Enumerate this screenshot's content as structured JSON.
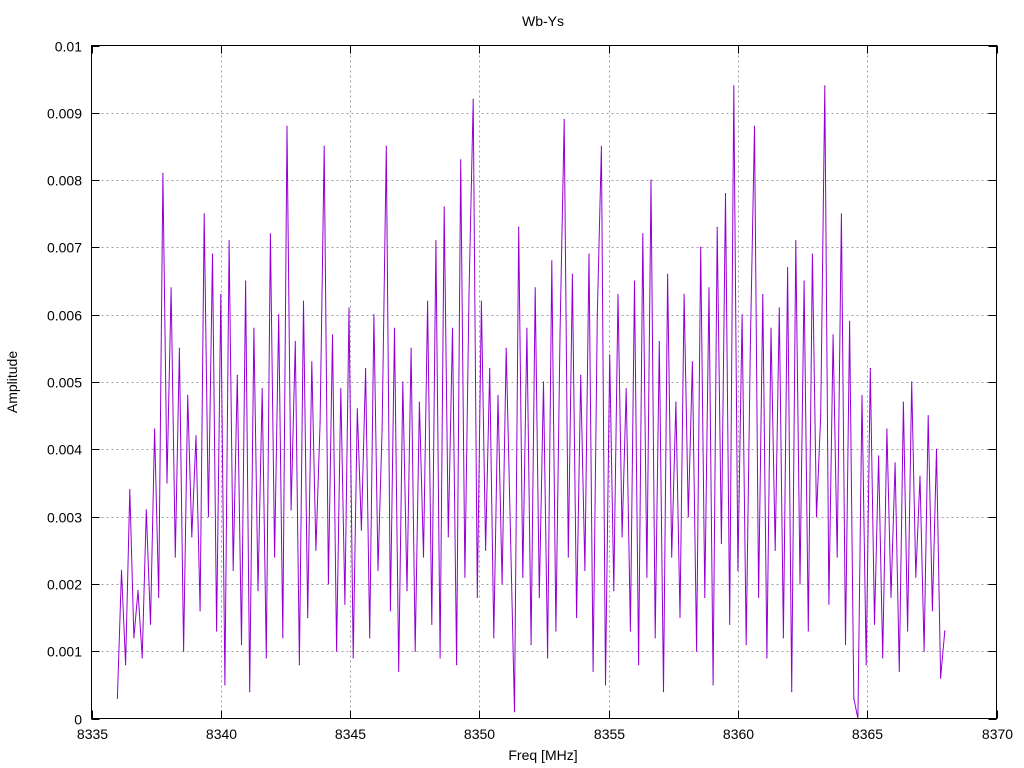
{
  "chart_data": {
    "type": "line",
    "title": "Wb-Ys",
    "xlabel": "Freq [MHz]",
    "ylabel": "Amplitude",
    "xlim": [
      8335,
      8370
    ],
    "ylim": [
      0,
      0.01
    ],
    "grid": true,
    "legend": "none",
    "line_color": "#9400d3",
    "x_ticks": [
      "8335",
      "8340",
      "8345",
      "8350",
      "8355",
      "8360",
      "8365",
      "8370"
    ],
    "x_tick_values": [
      8335,
      8340,
      8345,
      8350,
      8355,
      8360,
      8365,
      8370
    ],
    "y_ticks": [
      "0",
      "0.001",
      "0.002",
      "0.003",
      "0.004",
      "0.005",
      "0.006",
      "0.007",
      "0.008",
      "0.009",
      "0.01"
    ],
    "y_tick_values": [
      0,
      0.001,
      0.002,
      0.003,
      0.004,
      0.005,
      0.006,
      0.007,
      0.008,
      0.009,
      0.01
    ],
    "series": [
      {
        "name": "Wb-Ys",
        "x_start": 8336,
        "x_step": 0.16,
        "values": [
          0.0003,
          0.0022,
          0.0008,
          0.0034,
          0.0012,
          0.0019,
          0.0009,
          0.0031,
          0.0014,
          0.0043,
          0.0018,
          0.0081,
          0.0035,
          0.0064,
          0.0024,
          0.0055,
          0.001,
          0.0048,
          0.0027,
          0.0042,
          0.0016,
          0.0075,
          0.003,
          0.0069,
          0.0013,
          0.0063,
          0.0005,
          0.0071,
          0.0022,
          0.0051,
          0.0011,
          0.0065,
          0.0004,
          0.0058,
          0.0019,
          0.0049,
          0.0009,
          0.0072,
          0.0024,
          0.006,
          0.0012,
          0.0088,
          0.0031,
          0.0056,
          0.0008,
          0.0062,
          0.0015,
          0.0053,
          0.0025,
          0.0044,
          0.0085,
          0.002,
          0.0057,
          0.001,
          0.0049,
          0.0017,
          0.0061,
          0.0009,
          0.0046,
          0.0028,
          0.0052,
          0.0012,
          0.006,
          0.0022,
          0.0043,
          0.0085,
          0.0016,
          0.0058,
          0.0007,
          0.005,
          0.0019,
          0.0055,
          0.001,
          0.0047,
          0.0024,
          0.0062,
          0.0014,
          0.0071,
          0.0009,
          0.0076,
          0.0027,
          0.0058,
          0.0008,
          0.0083,
          0.0021,
          0.0063,
          0.0092,
          0.0018,
          0.0062,
          0.0025,
          0.0052,
          0.0012,
          0.0048,
          0.002,
          0.0055,
          0.0028,
          0.0001,
          0.0073,
          0.0021,
          0.0058,
          0.0011,
          0.0064,
          0.0018,
          0.005,
          0.0009,
          0.0068,
          0.0013,
          0.0057,
          0.0089,
          0.0024,
          0.0066,
          0.0015,
          0.0051,
          0.0022,
          0.0069,
          0.0007,
          0.006,
          0.0085,
          0.0005,
          0.0054,
          0.0019,
          0.0063,
          0.0027,
          0.0049,
          0.0013,
          0.0065,
          0.0008,
          0.0072,
          0.0021,
          0.008,
          0.0012,
          0.0056,
          0.0004,
          0.0066,
          0.0024,
          0.0047,
          0.0015,
          0.0063,
          0.003,
          0.0053,
          0.001,
          0.007,
          0.0018,
          0.0064,
          0.0005,
          0.0073,
          0.0026,
          0.0078,
          0.0014,
          0.0094,
          0.0022,
          0.006,
          0.0011,
          0.0055,
          0.0088,
          0.0018,
          0.0063,
          0.0009,
          0.0058,
          0.0025,
          0.0061,
          0.0012,
          0.0067,
          0.0004,
          0.0071,
          0.002,
          0.0065,
          0.0013,
          0.0069,
          0.003,
          0.0045,
          0.0094,
          0.0017,
          0.0057,
          0.0024,
          0.0075,
          0.0011,
          0.0059,
          0.0003,
          0.0,
          0.0048,
          0.0008,
          0.0052,
          0.0014,
          0.0039,
          0.0009,
          0.0043,
          0.0018,
          0.0038,
          0.0007,
          0.0047,
          0.0013,
          0.005,
          0.0021,
          0.0036,
          0.001,
          0.0045,
          0.0016,
          0.004,
          0.0006,
          0.0013
        ]
      }
    ]
  }
}
